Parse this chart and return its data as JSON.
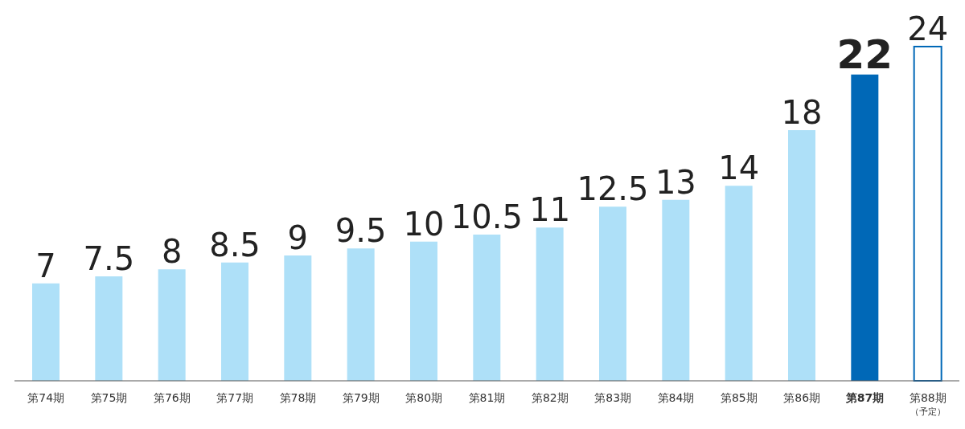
{
  "chart_data": {
    "type": "bar",
    "categories": [
      "第74期",
      "第75期",
      "第76期",
      "第77期",
      "第78期",
      "第79期",
      "第80期",
      "第81期",
      "第82期",
      "第83期",
      "第84期",
      "第85期",
      "第86期",
      "第87期",
      "第88期（予定）"
    ],
    "values": [
      7,
      7.5,
      8,
      8.5,
      9,
      9.5,
      10,
      10.5,
      11,
      12.5,
      13,
      14,
      18,
      22,
      24
    ],
    "color": "#0068b7",
    "colors": [
      "#aee0f8",
      "#aee0f8",
      "#aee0f8",
      "#aee0f8",
      "#aee0f8",
      "#aee0f8",
      "#aee0f8",
      "#aee0f8",
      "#aee0f8",
      "#aee0f8",
      "#aee0f8",
      "#aee0f8",
      "#aee0f8",
      "#0068b7",
      "#ffffff"
    ],
    "data_labels": true
  }
}
